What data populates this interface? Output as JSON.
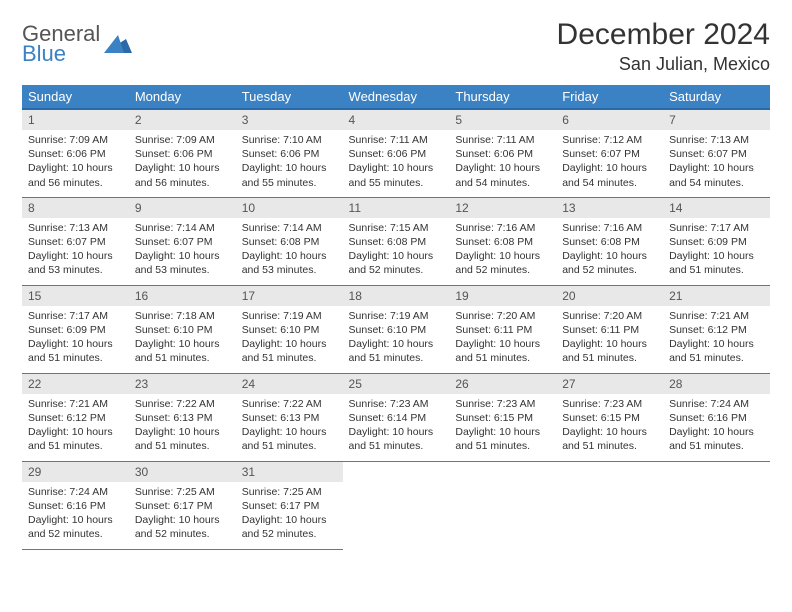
{
  "logo": {
    "general": "General",
    "blue": "Blue"
  },
  "title": "December 2024",
  "location": "San Julian, Mexico",
  "colors": {
    "header_bg": "#3b82c4",
    "header_border": "#2a6aa8",
    "daynum_bg": "#e8e8e8",
    "cell_border": "#3b82c4",
    "text": "#333333",
    "logo_gray": "#555555",
    "logo_blue": "#3b82c4",
    "page_bg": "#ffffff"
  },
  "typography": {
    "title_fontsize": 30,
    "location_fontsize": 18,
    "weekday_fontsize": 13,
    "daynum_fontsize": 12,
    "body_fontsize": 10.5
  },
  "weekdays": [
    "Sunday",
    "Monday",
    "Tuesday",
    "Wednesday",
    "Thursday",
    "Friday",
    "Saturday"
  ],
  "days": [
    {
      "n": "1",
      "sr": "Sunrise: 7:09 AM",
      "ss": "Sunset: 6:06 PM",
      "dl": "Daylight: 10 hours and 56 minutes."
    },
    {
      "n": "2",
      "sr": "Sunrise: 7:09 AM",
      "ss": "Sunset: 6:06 PM",
      "dl": "Daylight: 10 hours and 56 minutes."
    },
    {
      "n": "3",
      "sr": "Sunrise: 7:10 AM",
      "ss": "Sunset: 6:06 PM",
      "dl": "Daylight: 10 hours and 55 minutes."
    },
    {
      "n": "4",
      "sr": "Sunrise: 7:11 AM",
      "ss": "Sunset: 6:06 PM",
      "dl": "Daylight: 10 hours and 55 minutes."
    },
    {
      "n": "5",
      "sr": "Sunrise: 7:11 AM",
      "ss": "Sunset: 6:06 PM",
      "dl": "Daylight: 10 hours and 54 minutes."
    },
    {
      "n": "6",
      "sr": "Sunrise: 7:12 AM",
      "ss": "Sunset: 6:07 PM",
      "dl": "Daylight: 10 hours and 54 minutes."
    },
    {
      "n": "7",
      "sr": "Sunrise: 7:13 AM",
      "ss": "Sunset: 6:07 PM",
      "dl": "Daylight: 10 hours and 54 minutes."
    },
    {
      "n": "8",
      "sr": "Sunrise: 7:13 AM",
      "ss": "Sunset: 6:07 PM",
      "dl": "Daylight: 10 hours and 53 minutes."
    },
    {
      "n": "9",
      "sr": "Sunrise: 7:14 AM",
      "ss": "Sunset: 6:07 PM",
      "dl": "Daylight: 10 hours and 53 minutes."
    },
    {
      "n": "10",
      "sr": "Sunrise: 7:14 AM",
      "ss": "Sunset: 6:08 PM",
      "dl": "Daylight: 10 hours and 53 minutes."
    },
    {
      "n": "11",
      "sr": "Sunrise: 7:15 AM",
      "ss": "Sunset: 6:08 PM",
      "dl": "Daylight: 10 hours and 52 minutes."
    },
    {
      "n": "12",
      "sr": "Sunrise: 7:16 AM",
      "ss": "Sunset: 6:08 PM",
      "dl": "Daylight: 10 hours and 52 minutes."
    },
    {
      "n": "13",
      "sr": "Sunrise: 7:16 AM",
      "ss": "Sunset: 6:08 PM",
      "dl": "Daylight: 10 hours and 52 minutes."
    },
    {
      "n": "14",
      "sr": "Sunrise: 7:17 AM",
      "ss": "Sunset: 6:09 PM",
      "dl": "Daylight: 10 hours and 51 minutes."
    },
    {
      "n": "15",
      "sr": "Sunrise: 7:17 AM",
      "ss": "Sunset: 6:09 PM",
      "dl": "Daylight: 10 hours and 51 minutes."
    },
    {
      "n": "16",
      "sr": "Sunrise: 7:18 AM",
      "ss": "Sunset: 6:10 PM",
      "dl": "Daylight: 10 hours and 51 minutes."
    },
    {
      "n": "17",
      "sr": "Sunrise: 7:19 AM",
      "ss": "Sunset: 6:10 PM",
      "dl": "Daylight: 10 hours and 51 minutes."
    },
    {
      "n": "18",
      "sr": "Sunrise: 7:19 AM",
      "ss": "Sunset: 6:10 PM",
      "dl": "Daylight: 10 hours and 51 minutes."
    },
    {
      "n": "19",
      "sr": "Sunrise: 7:20 AM",
      "ss": "Sunset: 6:11 PM",
      "dl": "Daylight: 10 hours and 51 minutes."
    },
    {
      "n": "20",
      "sr": "Sunrise: 7:20 AM",
      "ss": "Sunset: 6:11 PM",
      "dl": "Daylight: 10 hours and 51 minutes."
    },
    {
      "n": "21",
      "sr": "Sunrise: 7:21 AM",
      "ss": "Sunset: 6:12 PM",
      "dl": "Daylight: 10 hours and 51 minutes."
    },
    {
      "n": "22",
      "sr": "Sunrise: 7:21 AM",
      "ss": "Sunset: 6:12 PM",
      "dl": "Daylight: 10 hours and 51 minutes."
    },
    {
      "n": "23",
      "sr": "Sunrise: 7:22 AM",
      "ss": "Sunset: 6:13 PM",
      "dl": "Daylight: 10 hours and 51 minutes."
    },
    {
      "n": "24",
      "sr": "Sunrise: 7:22 AM",
      "ss": "Sunset: 6:13 PM",
      "dl": "Daylight: 10 hours and 51 minutes."
    },
    {
      "n": "25",
      "sr": "Sunrise: 7:23 AM",
      "ss": "Sunset: 6:14 PM",
      "dl": "Daylight: 10 hours and 51 minutes."
    },
    {
      "n": "26",
      "sr": "Sunrise: 7:23 AM",
      "ss": "Sunset: 6:15 PM",
      "dl": "Daylight: 10 hours and 51 minutes."
    },
    {
      "n": "27",
      "sr": "Sunrise: 7:23 AM",
      "ss": "Sunset: 6:15 PM",
      "dl": "Daylight: 10 hours and 51 minutes."
    },
    {
      "n": "28",
      "sr": "Sunrise: 7:24 AM",
      "ss": "Sunset: 6:16 PM",
      "dl": "Daylight: 10 hours and 51 minutes."
    },
    {
      "n": "29",
      "sr": "Sunrise: 7:24 AM",
      "ss": "Sunset: 6:16 PM",
      "dl": "Daylight: 10 hours and 52 minutes."
    },
    {
      "n": "30",
      "sr": "Sunrise: 7:25 AM",
      "ss": "Sunset: 6:17 PM",
      "dl": "Daylight: 10 hours and 52 minutes."
    },
    {
      "n": "31",
      "sr": "Sunrise: 7:25 AM",
      "ss": "Sunset: 6:17 PM",
      "dl": "Daylight: 10 hours and 52 minutes."
    }
  ]
}
